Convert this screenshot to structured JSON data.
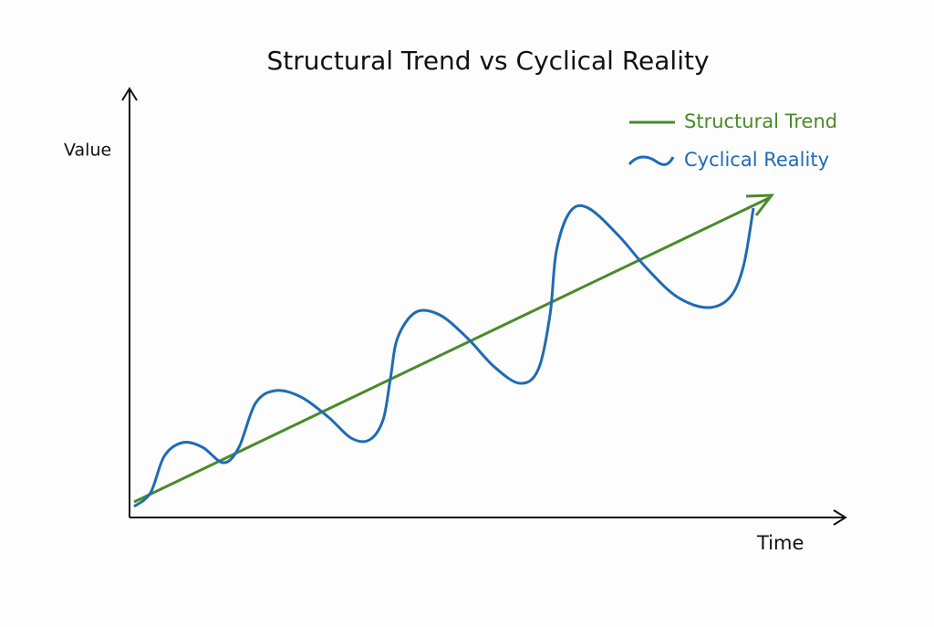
{
  "header": {
    "title": "Structural Trend vs Cyclical Reality"
  },
  "axes": {
    "y_label": "Value",
    "x_label": "Time"
  },
  "legend": {
    "items": [
      {
        "label": "Structural Trend"
      },
      {
        "label": "Cyclical Reality"
      }
    ]
  }
}
